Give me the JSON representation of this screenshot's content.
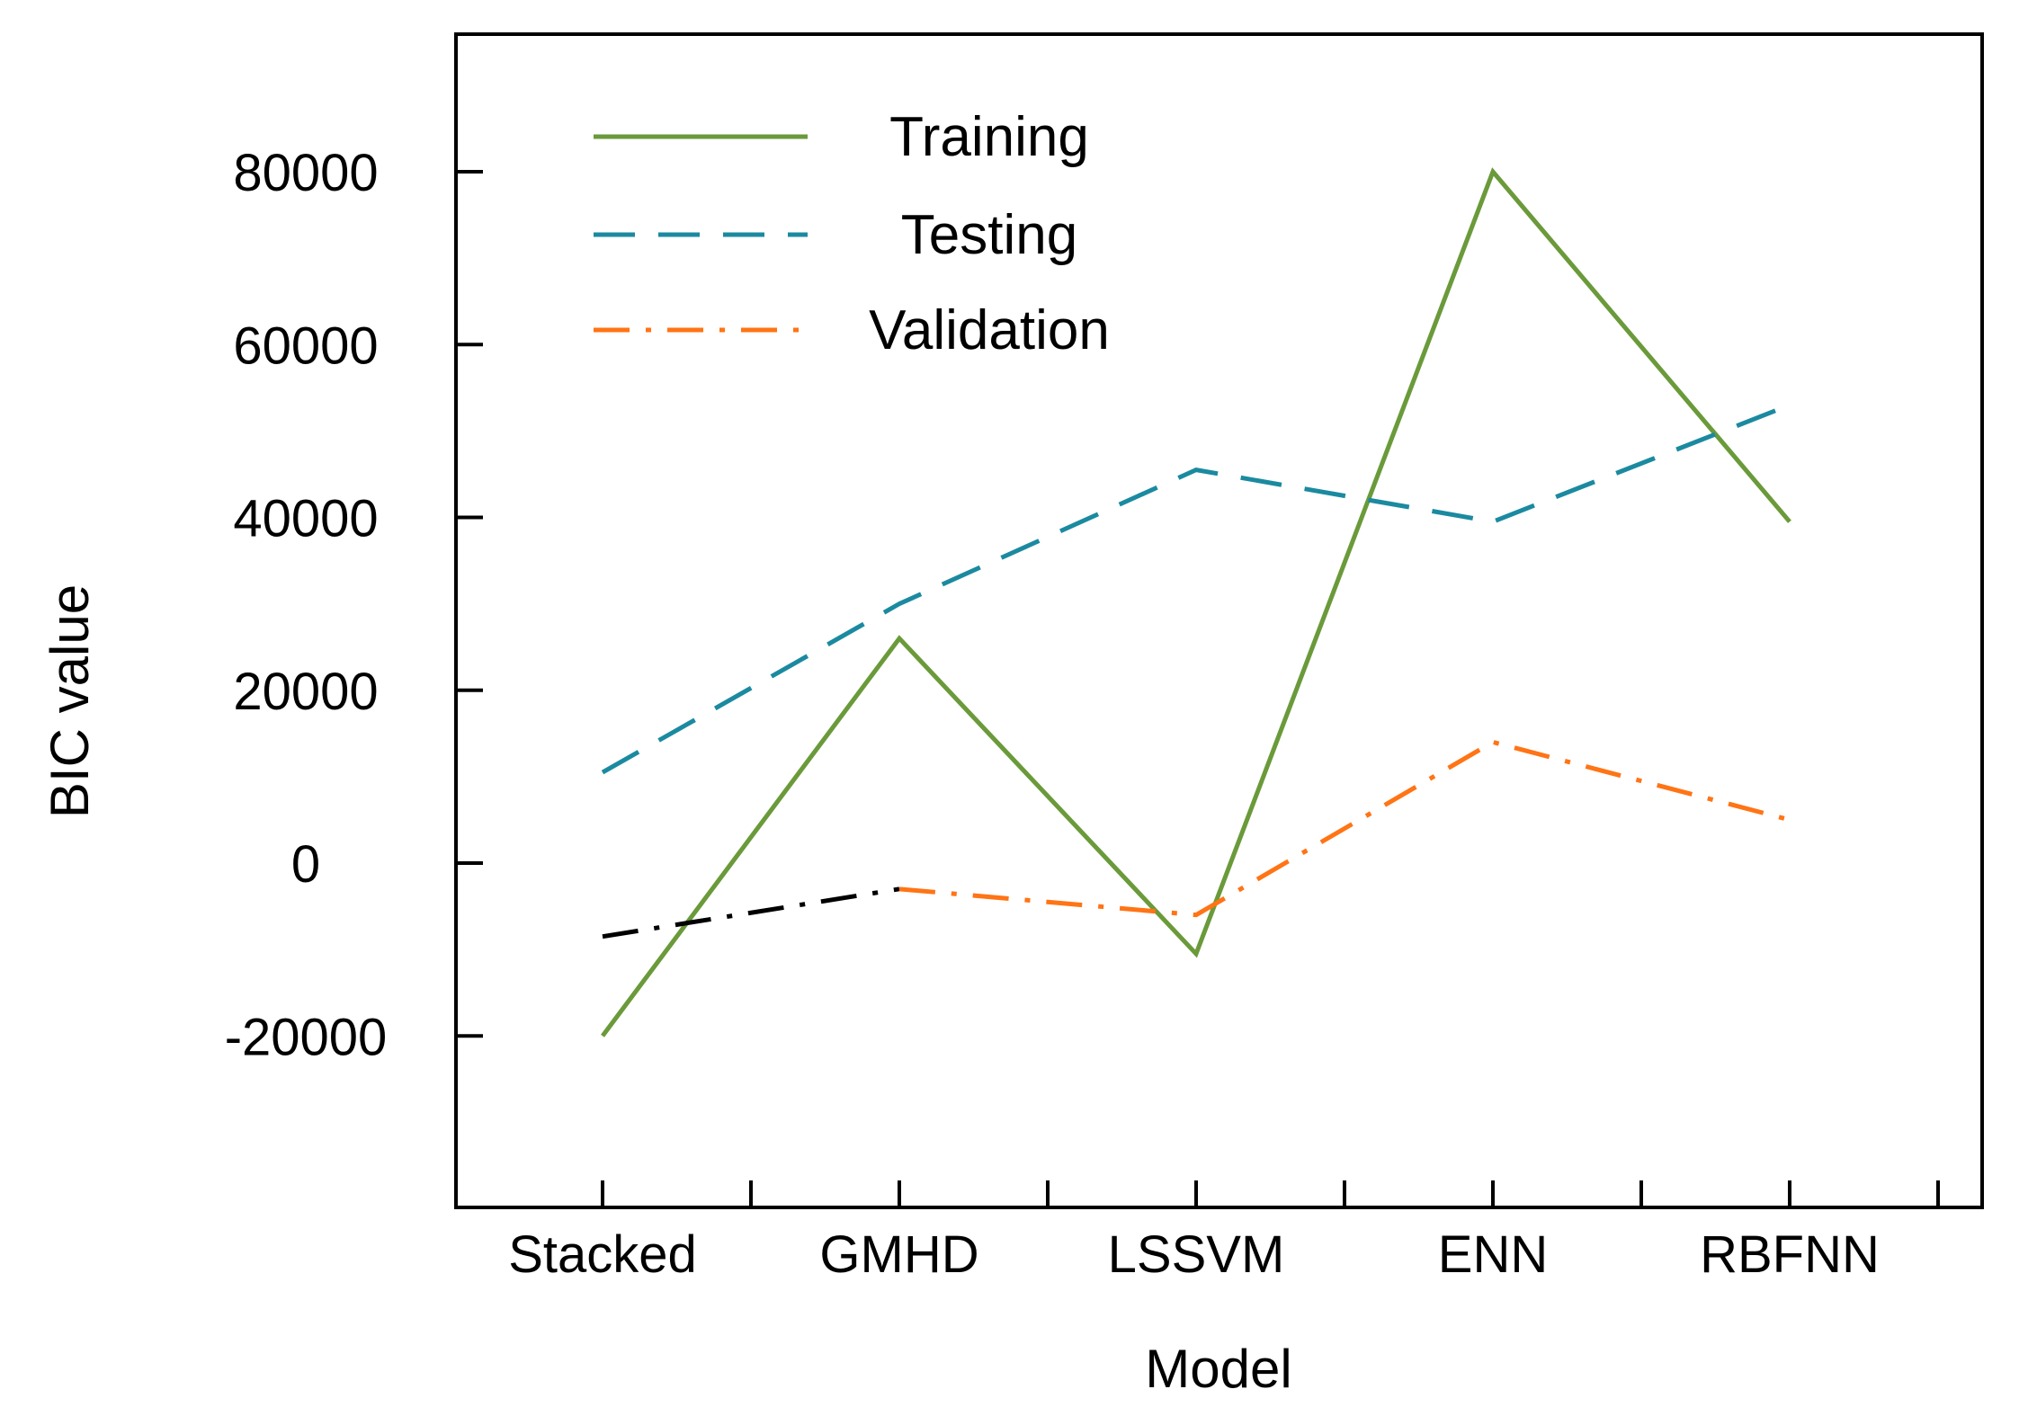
{
  "chart_data": {
    "type": "line",
    "title": "",
    "xlabel": "Model",
    "ylabel": "BIC value",
    "categories": [
      "Stacked",
      "GMHD",
      "LSSVM",
      "ENN",
      "RBFNN"
    ],
    "ylim": [
      -40000,
      95000
    ],
    "yticks": [
      -20000,
      0,
      20000,
      40000,
      60000,
      80000
    ],
    "ytick_labels": [
      "-20000",
      "0",
      "20000",
      "40000",
      "60000",
      "80000"
    ],
    "grid": false,
    "legend_position": "top-left",
    "series": [
      {
        "name": "Training",
        "style": "solid",
        "color": "#6a9a3a",
        "values": [
          -20000,
          26000,
          -10500,
          80000,
          39500
        ]
      },
      {
        "name": "Testing",
        "style": "dashed",
        "color": "#1b8aa0",
        "values": [
          10500,
          30000,
          45500,
          39500,
          53000
        ]
      },
      {
        "name": "Validation",
        "style": "dashdot",
        "color": "#ff7415",
        "first_segment_color": "#000000",
        "values": [
          -8500,
          -3000,
          -6000,
          14000,
          5000
        ]
      }
    ]
  }
}
